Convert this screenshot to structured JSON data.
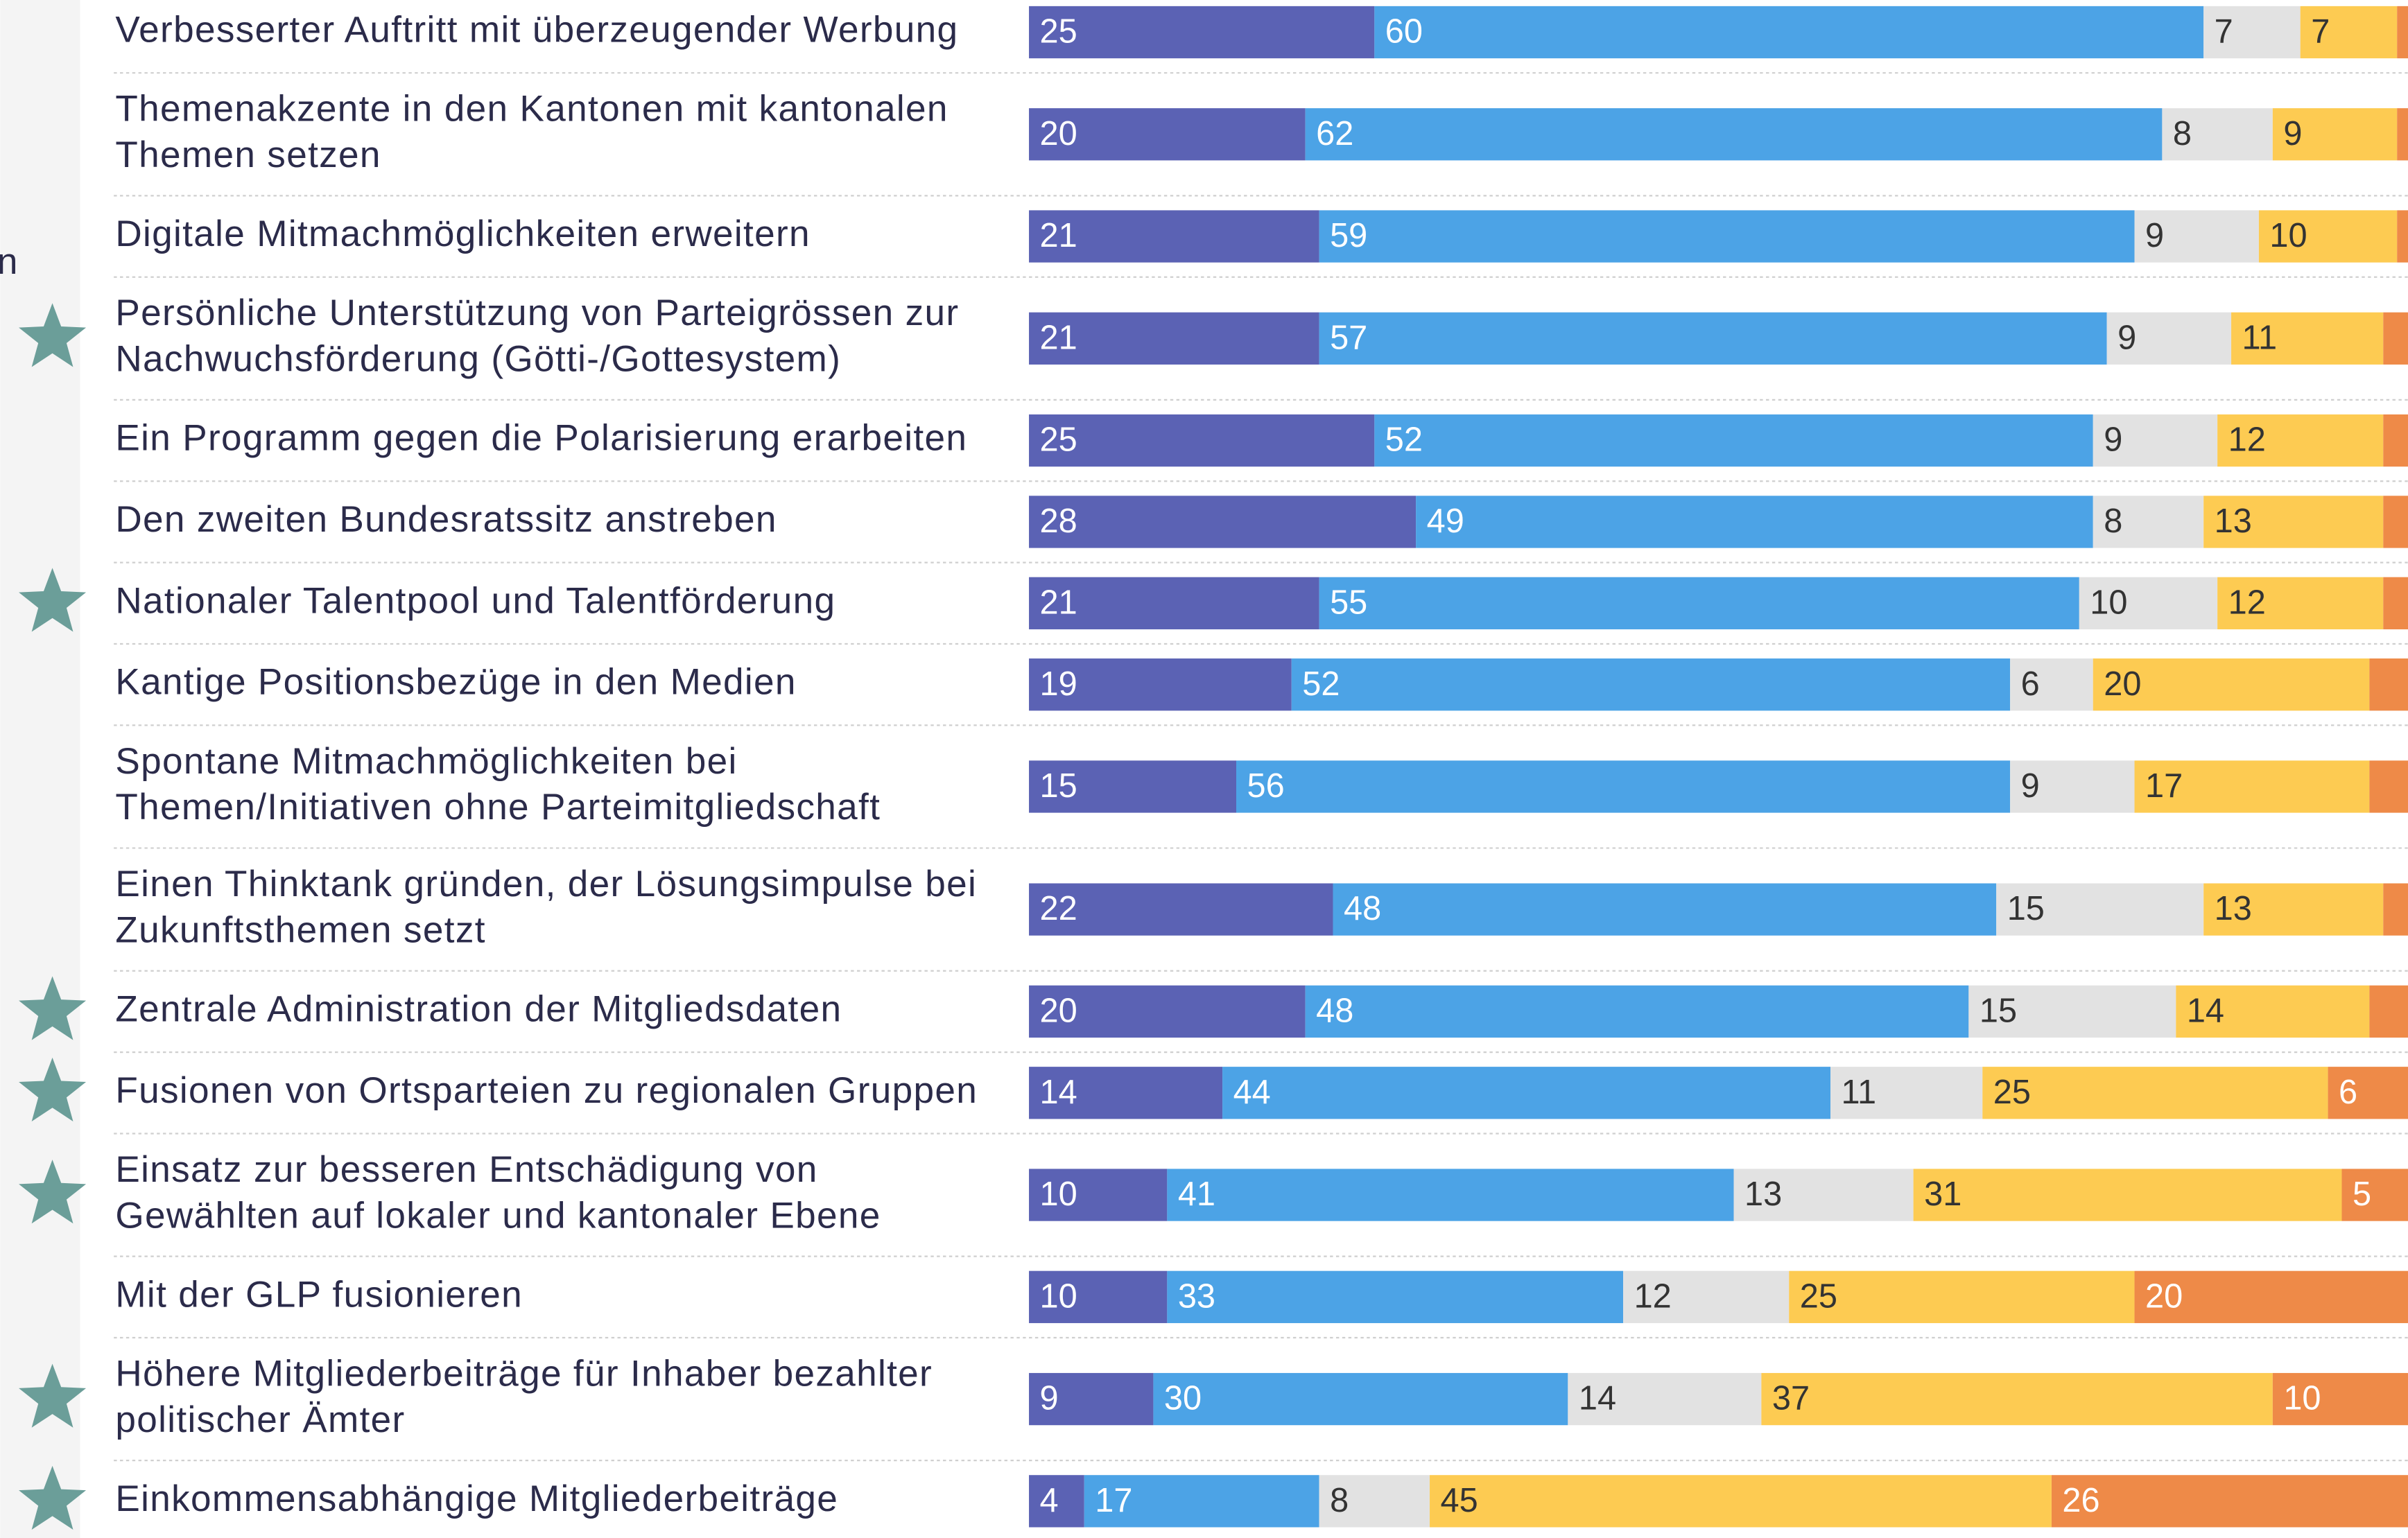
{
  "chart_data": {
    "type": "stacked-bar-horizontal",
    "side_label": "n",
    "categories": [
      [
        "Verbesserter Auftritt mit überzeugender Werbung"
      ],
      [
        "Themenakzente in den Kantonen mit kantonalen",
        "Themen setzen"
      ],
      [
        "Digitale Mitmachmöglichkeiten erweitern"
      ],
      [
        "Persönliche Unterstützung von Parteigrössen zur",
        "Nachwuchsförderung (Götti-/Gottesystem)"
      ],
      [
        "Ein Programm gegen die Polarisierung erarbeiten"
      ],
      [
        "Den zweiten Bundesratssitz anstreben"
      ],
      [
        "Nationaler Talentpool und Talentförderung"
      ],
      [
        "Kantige Positionsbezüge in den Medien"
      ],
      [
        "Spontane Mitmachmöglichkeiten bei",
        "Themen/Initiativen ohne Parteimitgliedschaft"
      ],
      [
        "Einen Thinktank gründen, der Lösungsimpulse bei",
        "Zukunftsthemen setzt"
      ],
      [
        "Zentrale Administration der Mitgliedsdaten"
      ],
      [
        "Fusionen von Ortsparteien zu regionalen Gruppen"
      ],
      [
        "Einsatz zur besseren Entschädigung von",
        "Gewählten auf lokaler und kantonaler Ebene"
      ],
      [
        "Mit der GLP fusionieren"
      ],
      [
        "Höhere Mitgliederbeiträge für Inhaber bezahlter",
        "politischer Ämter"
      ],
      [
        "Einkommensabhängige Mitgliederbeiträge"
      ]
    ],
    "highlighted": [
      false,
      false,
      false,
      true,
      false,
      false,
      true,
      false,
      false,
      false,
      true,
      true,
      true,
      false,
      true,
      true
    ],
    "star_color": "#6b9e99",
    "xlim": [
      0,
      100
    ],
    "series": [
      {
        "color": "#5b62b4",
        "text_color": "#ffffff",
        "values": [
          25,
          20,
          21,
          21,
          25,
          28,
          21,
          19,
          15,
          22,
          20,
          14,
          10,
          10,
          9,
          4
        ]
      },
      {
        "color": "#4ca3e6",
        "text_color": "#ffffff",
        "values": [
          60,
          62,
          59,
          57,
          52,
          49,
          55,
          52,
          56,
          48,
          48,
          44,
          41,
          33,
          30,
          17
        ]
      },
      {
        "color": "#e2e2e2",
        "text_color": "#333333",
        "values": [
          7,
          8,
          9,
          9,
          9,
          8,
          10,
          6,
          9,
          15,
          15,
          11,
          13,
          12,
          14,
          8
        ]
      },
      {
        "color": "#fdcb52",
        "text_color": "#333333",
        "values": [
          7,
          9,
          10,
          11,
          12,
          13,
          12,
          20,
          17,
          13,
          14,
          25,
          31,
          25,
          37,
          45
        ]
      },
      {
        "color": "#ee8a48",
        "text_color": "#ffffff",
        "values": [
          1,
          1,
          1,
          2,
          2,
          2,
          2,
          3,
          3,
          2,
          3,
          6,
          5,
          20,
          10,
          26
        ]
      }
    ]
  }
}
